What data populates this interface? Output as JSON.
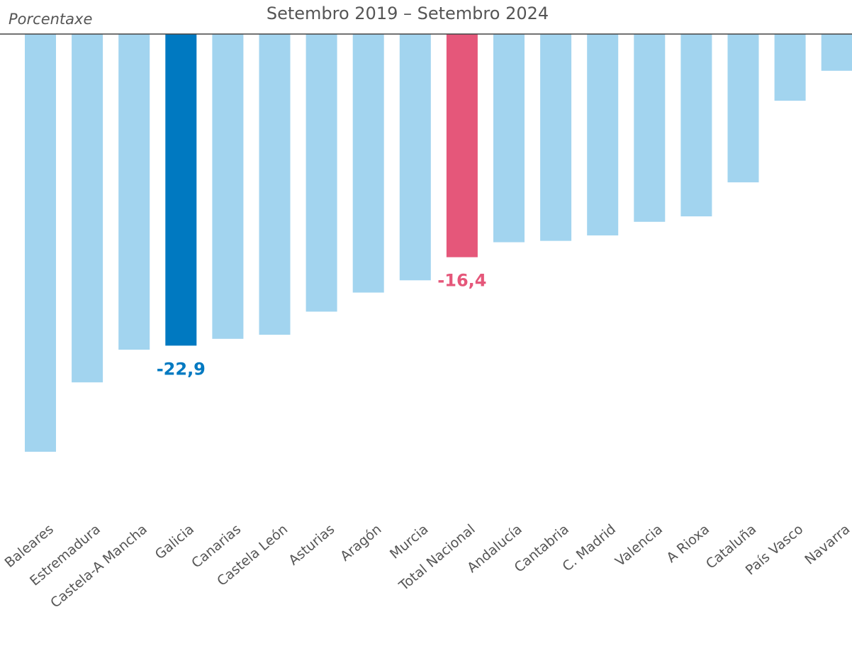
{
  "chart_data": {
    "type": "bar",
    "title": "Setembro 2019 – Setembro 2024",
    "y_label": "Porcentaxe",
    "categories": [
      "Baleares",
      "Estremadura",
      "Castela-A Mancha",
      "Galicia",
      "Canarias",
      "Castela León",
      "Asturias",
      "Aragón",
      "Murcia",
      "Total Nacional",
      "Andalucía",
      "Cantabria",
      "C. Madrid",
      "Valencia",
      "A Rioxa",
      "Cataluña",
      "País Vasco",
      "Navarra"
    ],
    "values": [
      -30.7,
      -25.6,
      -23.2,
      -22.9,
      -22.4,
      -22.1,
      -20.4,
      -19.0,
      -18.1,
      -16.4,
      -15.3,
      -15.2,
      -14.8,
      -13.8,
      -13.4,
      -10.9,
      -4.9,
      -2.7
    ],
    "value_labels": [
      null,
      null,
      null,
      "-22,9",
      null,
      null,
      null,
      null,
      null,
      "-16,4",
      null,
      null,
      null,
      null,
      null,
      null,
      null,
      null
    ],
    "colors": [
      "#a2d4ef",
      "#a2d4ef",
      "#a2d4ef",
      "#0079c1",
      "#a2d4ef",
      "#a2d4ef",
      "#a2d4ef",
      "#a2d4ef",
      "#a2d4ef",
      "#e5577a",
      "#a2d4ef",
      "#a2d4ef",
      "#a2d4ef",
      "#a2d4ef",
      "#a2d4ef",
      "#a2d4ef",
      "#a2d4ef",
      "#a2d4ef"
    ],
    "ylim": [
      -32,
      0
    ]
  }
}
